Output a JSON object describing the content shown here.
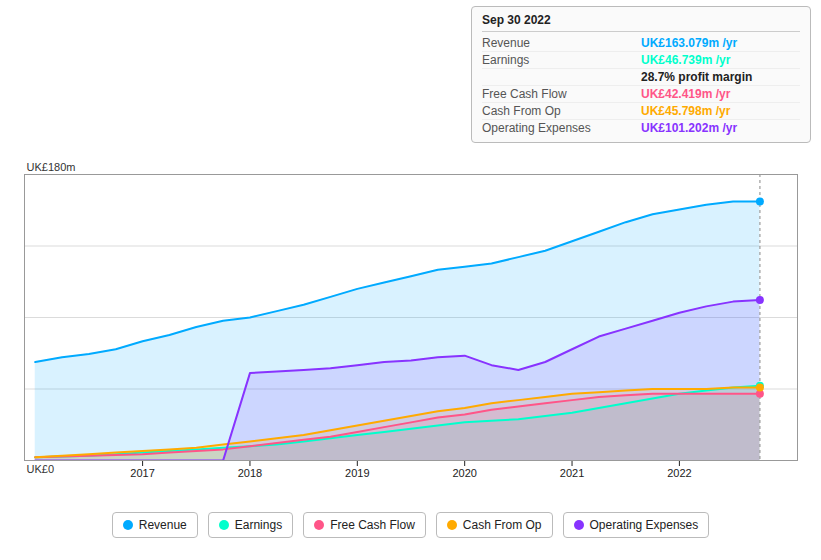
{
  "chart_data": {
    "type": "area",
    "ylabel": "UK£180m",
    "x": [
      2016.0,
      2016.25,
      2016.5,
      2016.75,
      2017.0,
      2017.25,
      2017.5,
      2017.75,
      2018.0,
      2018.25,
      2018.5,
      2018.75,
      2019.0,
      2019.25,
      2019.5,
      2019.75,
      2020.0,
      2020.25,
      2020.5,
      2020.75,
      2021.0,
      2021.25,
      2021.5,
      2021.75,
      2022.0,
      2022.25,
      2022.5,
      2022.75
    ],
    "series": [
      {
        "name": "Revenue",
        "color": "#00aaff",
        "values": [
          62,
          65,
          67,
          70,
          75,
          79,
          84,
          88,
          90,
          94,
          98,
          103,
          108,
          112,
          116,
          120,
          122,
          124,
          128,
          132,
          138,
          144,
          150,
          155,
          158,
          161,
          163,
          163
        ]
      },
      {
        "name": "Earnings",
        "color": "#00ffcc",
        "values": [
          2,
          2.5,
          3,
          4,
          5,
          6,
          7,
          8,
          9,
          10,
          12,
          14,
          16,
          18,
          20,
          22,
          24,
          25,
          26,
          28,
          30,
          33,
          36,
          39,
          42,
          44,
          46,
          47
        ]
      },
      {
        "name": "Free Cash Flow",
        "color": "#ff5588",
        "values": [
          2,
          2.5,
          3,
          3.5,
          4,
          5,
          6,
          7,
          9,
          11,
          13,
          15,
          18,
          21,
          24,
          27,
          29,
          32,
          34,
          36,
          38,
          40,
          41,
          42,
          42,
          42,
          42,
          42
        ]
      },
      {
        "name": "Cash From Op",
        "color": "#ffaa00",
        "values": [
          2,
          3,
          4,
          5,
          6,
          7,
          8,
          10,
          12,
          14,
          16,
          19,
          22,
          25,
          28,
          31,
          33,
          36,
          38,
          40,
          42,
          43,
          44,
          45,
          45,
          45,
          46,
          46
        ]
      },
      {
        "name": "Operating Expenses",
        "color": "#8833ff",
        "values": [
          0,
          0,
          0,
          0,
          0,
          0,
          0,
          0,
          55,
          56,
          57,
          58,
          60,
          62,
          63,
          65,
          66,
          60,
          57,
          62,
          70,
          78,
          83,
          88,
          93,
          97,
          100,
          101
        ]
      }
    ],
    "xlim": [
      2015.9,
      2023.1
    ],
    "xticks": [
      2017,
      2018,
      2019,
      2020,
      2021,
      2022
    ],
    "ylim": [
      0,
      180
    ],
    "yticks": [
      45,
      90,
      135,
      180
    ],
    "grid": true,
    "tick_labels": "x",
    "annotations": {
      "ylabel0": "UK£0",
      "tooltip": {
        "title": "Sep 30 2022",
        "rows": [
          {
            "label": "Revenue",
            "text": "UK£163.079m /yr"
          },
          {
            "label": "Earnings",
            "text": "UK£46.739m /yr",
            "note": "28.7% profit margin"
          },
          {
            "label": "Free Cash Flow",
            "text": "UK£42.419m /yr"
          },
          {
            "label": "Cash From Op",
            "text": "UK£45.798m /yr"
          },
          {
            "label": "Operating Expenses",
            "text": "UK£101.202m /yr"
          }
        ]
      }
    }
  }
}
